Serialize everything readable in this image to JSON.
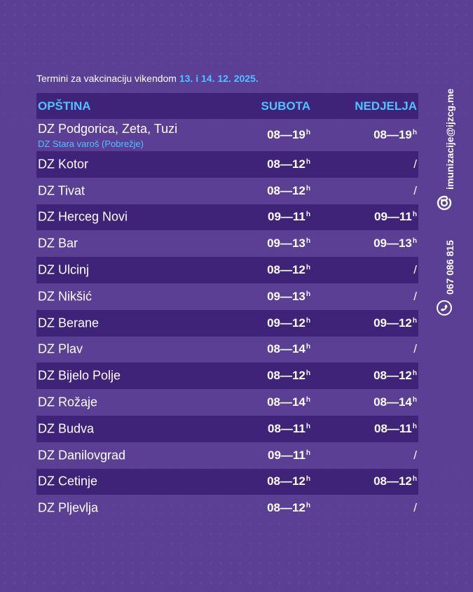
{
  "intro": {
    "text": "Termini za vakcinaciju vikendom",
    "date": "13. i 14. 12. 2025."
  },
  "table": {
    "headers": {
      "municipality": "OPŠTINA",
      "saturday": "SUBOTA",
      "sunday": "NEDJELJA"
    },
    "rows": [
      {
        "name": "DZ Podgorica, Zeta, Tuzi",
        "sub": "DZ Stara varoš (Pobrežje)",
        "sat": "08—19",
        "sat_sup": "h",
        "sun": "08—19",
        "sun_sup": "h"
      },
      {
        "name": "DZ Kotor",
        "sat": "08—12",
        "sat_sup": "h",
        "sun": "/",
        "sun_sup": ""
      },
      {
        "name": "DZ Tivat",
        "sat": "08—12",
        "sat_sup": "h",
        "sun": "/",
        "sun_sup": ""
      },
      {
        "name": "DZ Herceg Novi",
        "sat": "09—11",
        "sat_sup": "h",
        "sun": "09—11",
        "sun_sup": "h"
      },
      {
        "name": "DZ Bar",
        "sat": "09—13",
        "sat_sup": "h",
        "sun": "09—13",
        "sun_sup": "h"
      },
      {
        "name": "DZ Ulcinj",
        "sat": "08—12",
        "sat_sup": "h",
        "sun": "/",
        "sun_sup": ""
      },
      {
        "name": "DZ Nikšić",
        "sat": "09—13",
        "sat_sup": "h",
        "sun": "/",
        "sun_sup": ""
      },
      {
        "name": "DZ Berane",
        "sat": "09—12",
        "sat_sup": "h",
        "sun": "09—12",
        "sun_sup": "h"
      },
      {
        "name": "DZ Plav",
        "sat": "08—14",
        "sat_sup": "h",
        "sun": "/",
        "sun_sup": ""
      },
      {
        "name": "DZ Bijelo Polje",
        "sat": "08—12",
        "sat_sup": "h",
        "sun": "08—12",
        "sun_sup": "h"
      },
      {
        "name": "DZ Rožaje",
        "sat": "08—14",
        "sat_sup": "h",
        "sun": "08—14",
        "sun_sup": "h"
      },
      {
        "name": "DZ Budva",
        "sat": "08—11",
        "sat_sup": "h",
        "sun": "08—11",
        "sun_sup": "h"
      },
      {
        "name": "DZ Danilovgrad",
        "sat": "09—11",
        "sat_sup": "h",
        "sun": "/",
        "sun_sup": ""
      },
      {
        "name": "DZ Cetinje",
        "sat": "08—12",
        "sat_sup": "h",
        "sun": "08—12",
        "sun_sup": "h"
      },
      {
        "name": "DZ Pljevlja",
        "sat": "08—12",
        "sat_sup": "h",
        "sun": "/",
        "sun_sup": ""
      }
    ]
  },
  "contact": {
    "email": "imunizacije@ijzcg.me",
    "phone": "067 086 815",
    "email_icon": "at-sign-icon",
    "phone_icon": "phone-icon"
  },
  "colors": {
    "background": "#5a3f94",
    "band": "#3f2378",
    "accent": "#4fc3ff"
  }
}
